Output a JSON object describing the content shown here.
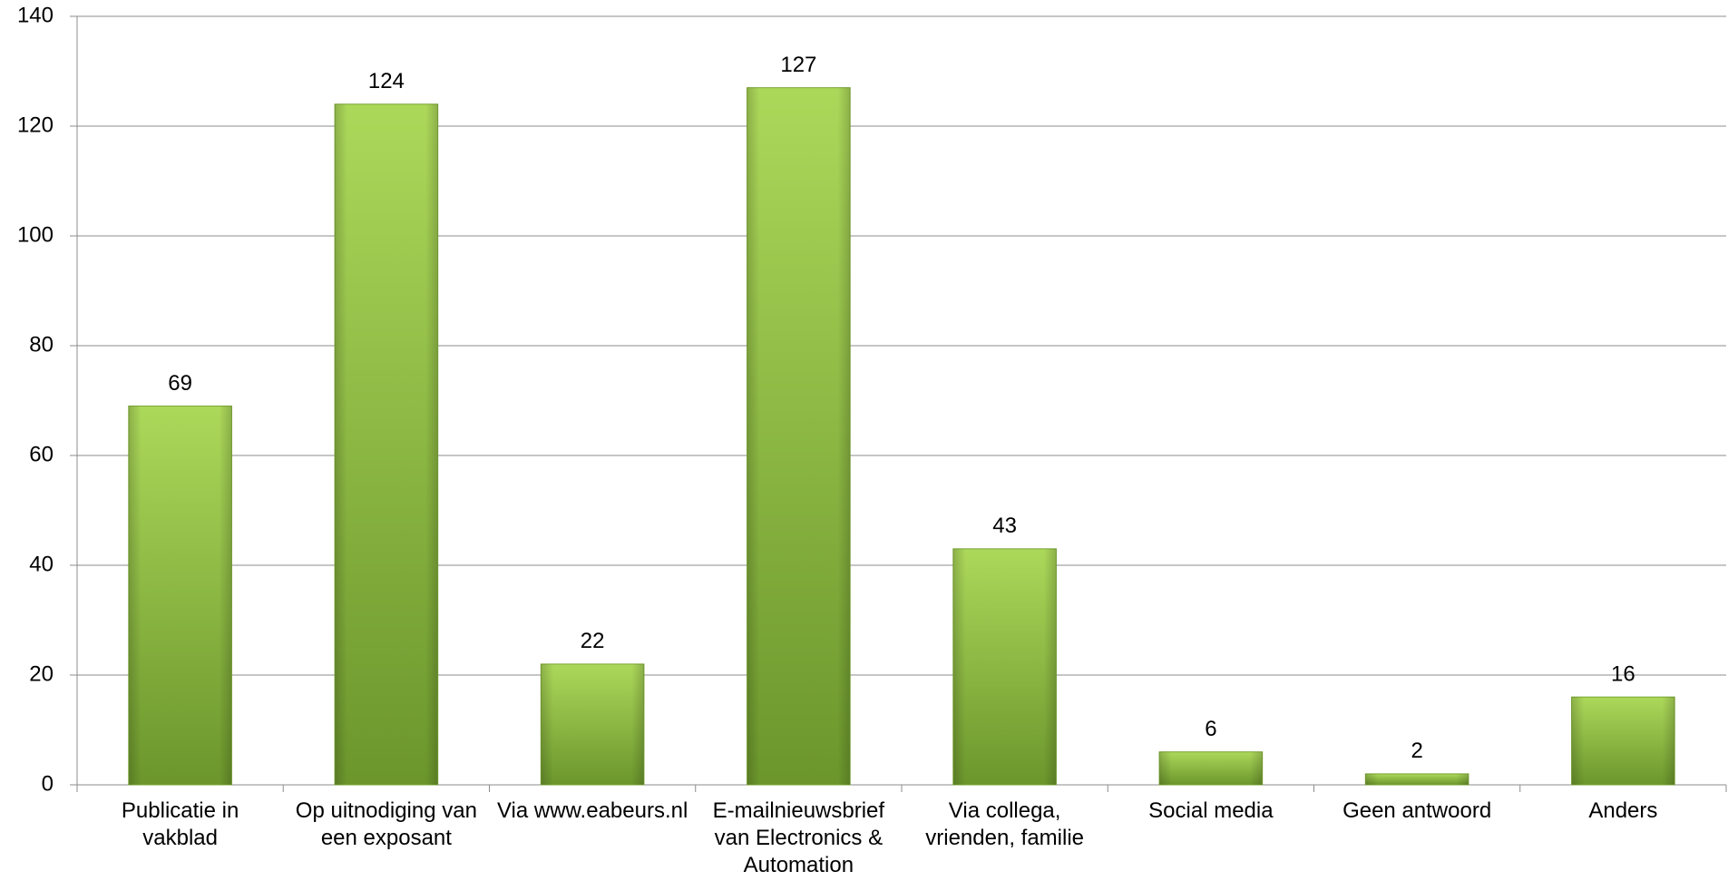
{
  "chart_data": {
    "type": "bar",
    "categories": [
      "Publicatie in vakblad",
      "Op uitnodiging van een exposant",
      "Via www.eabeurs.nl",
      "E-mailnieuwsbrief van Electronics & Automation",
      "Via collega, vrienden, familie",
      "Social media",
      "Geen antwoord",
      "Anders"
    ],
    "values": [
      69,
      124,
      22,
      127,
      43,
      6,
      2,
      16
    ],
    "color": "#8ab940",
    "ylim": [
      0,
      140
    ],
    "yticks": [
      0,
      20,
      40,
      60,
      80,
      100,
      120,
      140
    ],
    "grid": true
  }
}
